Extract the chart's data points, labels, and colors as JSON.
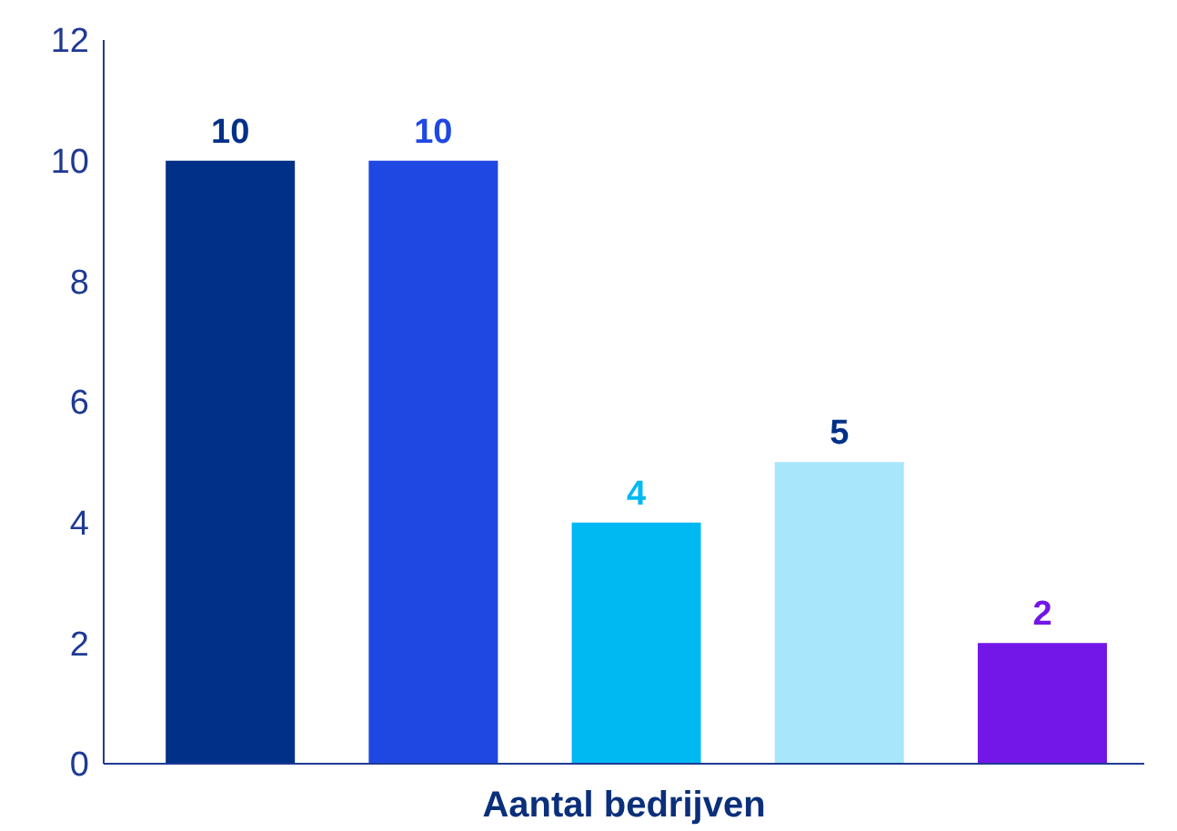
{
  "chart_data": {
    "type": "bar",
    "xlabel": "Aantal bedrijven",
    "categories": [
      null,
      null,
      null,
      null,
      null
    ],
    "values": [
      10,
      10,
      4,
      5,
      2
    ],
    "colors": [
      "#003087",
      "#1f48e2",
      "#00b9f2",
      "#a8e6fc",
      "#7316e8"
    ],
    "ylim": [
      0,
      12
    ],
    "yticks": [
      0,
      2,
      4,
      6,
      8,
      10,
      12
    ],
    "grid": false,
    "legend": false,
    "data_labels": true
  }
}
